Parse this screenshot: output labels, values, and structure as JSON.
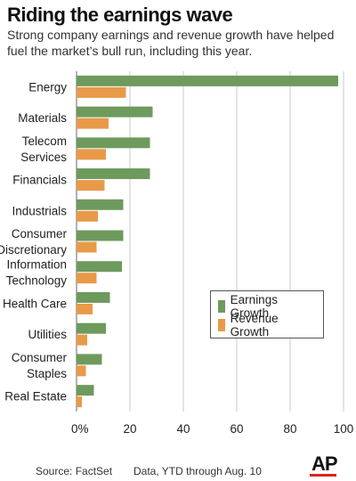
{
  "header": {
    "title": "Riding the earnings wave",
    "subtitle": "Strong company earnings and revenue growth have helped fuel the market’s bull run, including this year."
  },
  "footer": {
    "source": "Source: FactSet",
    "note": "Data, YTD through Aug. 10",
    "logo": "AP"
  },
  "colors": {
    "earnings": "#6e9a5e",
    "revenue": "#e89a48",
    "grid": "#c8c8c8",
    "brand_accent": "#d22222"
  },
  "chart_data": {
    "type": "bar",
    "orientation": "horizontal",
    "categories": [
      [
        "Energy"
      ],
      [
        "Materials"
      ],
      [
        "Telecom",
        "Services"
      ],
      [
        "Financials"
      ],
      [
        "Industrials"
      ],
      [
        "Consumer",
        "Discretionary"
      ],
      [
        "Information",
        "Technology"
      ],
      [
        "Health Care"
      ],
      [
        "Utilities"
      ],
      [
        "Consumer",
        "Staples"
      ],
      [
        "Real Estate"
      ]
    ],
    "series": [
      {
        "name": "Earnings Growth",
        "values": [
          98,
          28.5,
          27.5,
          27.5,
          17.5,
          17.5,
          17,
          12.5,
          11,
          9.5,
          6.5
        ]
      },
      {
        "name": "Revenue Growth",
        "values": [
          18.5,
          12,
          11,
          10.5,
          8,
          7.5,
          7.5,
          6,
          4,
          3.5,
          2
        ]
      }
    ],
    "xlim": [
      0,
      100
    ],
    "xticks": [
      0,
      20,
      40,
      60,
      80,
      100
    ],
    "xtick_labels": [
      "0%",
      "20",
      "40",
      "60",
      "80",
      "100"
    ],
    "grid": true,
    "legend_position": "lower-right"
  }
}
